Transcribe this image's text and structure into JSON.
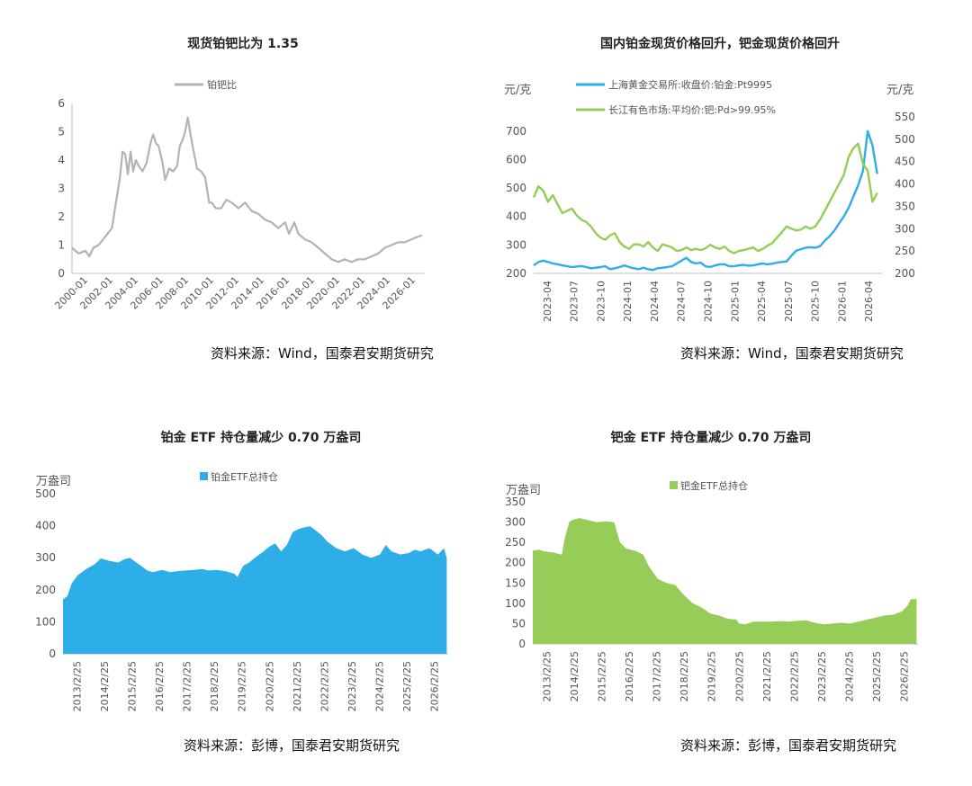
{
  "panels": {
    "p1": {
      "title": "现货铂钯比为 1.35",
      "source": "资料来源：Wind，国泰君安期货研究"
    },
    "p2": {
      "title": "国内铂金现货价格回升，钯金现货价格回升",
      "source": "资料来源：Wind，国泰君安期货研究"
    },
    "p3": {
      "title": "铂金 ETF 持仓量减少 0.70 万盎司",
      "source": "资料来源：彭博，国泰君安期货研究"
    },
    "p4": {
      "title": "钯金 ETF 持仓量减少 0.70 万盎司",
      "source": "资料来源：彭博，国泰君安期货研究"
    }
  },
  "colors": {
    "gray": "#b3b3b3",
    "blue": "#2eaee8",
    "green": "#95cd58"
  },
  "chart_data": [
    {
      "type": "line",
      "title": "现货铂钯比为 1.35",
      "xlabel": "",
      "ylabel": "",
      "ylim": [
        0,
        6
      ],
      "yticks": [
        0,
        1,
        2,
        3,
        4,
        5,
        6
      ],
      "xlim": [
        2000.0,
        2026.5
      ],
      "xtick_labels": [
        "2000-01",
        "2002-01",
        "2004-01",
        "2006-01",
        "2008-01",
        "2010-01",
        "2012-01",
        "2014-01",
        "2016-01",
        "2018-01",
        "2020-01",
        "2022-01",
        "2024-01",
        "2026-01"
      ],
      "legend": "top-center",
      "series": [
        {
          "name": "铂钯比",
          "color": "#b3b3b3",
          "x": [
            2000.0,
            2000.5,
            2001.0,
            2001.3,
            2001.6,
            2002.0,
            2002.5,
            2003.0,
            2003.3,
            2003.6,
            2003.8,
            2004.0,
            2004.2,
            2004.4,
            2004.6,
            2004.8,
            2005.0,
            2005.3,
            2005.6,
            2005.9,
            2006.1,
            2006.3,
            2006.5,
            2006.8,
            2007.0,
            2007.3,
            2007.6,
            2007.9,
            2008.1,
            2008.3,
            2008.5,
            2008.7,
            2008.9,
            2009.1,
            2009.4,
            2009.7,
            2010.0,
            2010.3,
            2010.5,
            2010.8,
            2011.2,
            2011.6,
            2012.0,
            2012.5,
            2013.0,
            2013.5,
            2014.0,
            2014.5,
            2015.0,
            2015.5,
            2016.0,
            2016.3,
            2016.7,
            2017.0,
            2017.5,
            2018.0,
            2018.5,
            2019.0,
            2019.5,
            2020.0,
            2020.5,
            2021.0,
            2021.5,
            2022.0,
            2022.5,
            2023.0,
            2023.5,
            2024.0,
            2024.5,
            2025.0,
            2025.5,
            2026.0,
            2026.3
          ],
          "y": [
            0.9,
            0.7,
            0.8,
            0.6,
            0.9,
            1.0,
            1.3,
            1.6,
            2.5,
            3.4,
            4.3,
            4.2,
            3.5,
            4.3,
            3.6,
            4.0,
            3.8,
            3.6,
            3.9,
            4.6,
            4.9,
            4.6,
            4.5,
            3.9,
            3.3,
            3.7,
            3.6,
            3.8,
            4.5,
            4.7,
            5.0,
            5.5,
            4.9,
            4.4,
            3.7,
            3.6,
            3.4,
            2.5,
            2.5,
            2.3,
            2.3,
            2.6,
            2.5,
            2.3,
            2.5,
            2.2,
            2.1,
            1.9,
            1.8,
            1.6,
            1.8,
            1.4,
            1.8,
            1.4,
            1.2,
            1.1,
            0.9,
            0.7,
            0.5,
            0.4,
            0.5,
            0.4,
            0.5,
            0.5,
            0.6,
            0.7,
            0.9,
            1.0,
            1.1,
            1.1,
            1.2,
            1.3,
            1.35
          ]
        }
      ]
    },
    {
      "type": "line",
      "title": "国内铂金现货价格回升，钯金现货价格回升",
      "ylabel": "元/克",
      "y2label": "元/克",
      "ylim": [
        200,
        750
      ],
      "yticks": [
        200,
        300,
        400,
        500,
        600,
        700
      ],
      "y2lim": [
        200,
        550
      ],
      "y2ticks": [
        200,
        250,
        300,
        350,
        400,
        450,
        500,
        550
      ],
      "xlim": [
        0,
        36.5
      ],
      "xtick_labels": [
        "2023-04",
        "2023-07",
        "2023-10",
        "2024-01",
        "2024-04",
        "2024-07",
        "2024-10",
        "2025-01",
        "2025-04",
        "2025-07",
        "2025-10",
        "2026-01",
        "2026-04"
      ],
      "legend": "top-center",
      "series": [
        {
          "name": "上海黄金交易所:收盘价:铂金:Pt9995",
          "axis": "left",
          "color": "#2eaee8",
          "x": [
            0,
            0.5,
            1,
            1.5,
            2,
            2.5,
            3,
            3.5,
            4,
            4.5,
            5,
            5.5,
            6,
            6.5,
            7,
            7.5,
            8,
            8.5,
            9,
            9.5,
            10,
            10.5,
            11,
            11.5,
            12,
            12.5,
            13,
            13.5,
            14,
            14.5,
            15,
            15.5,
            16,
            16.5,
            17,
            17.5,
            18,
            18.5,
            19,
            19.5,
            20,
            20.5,
            21,
            21.5,
            22,
            22.5,
            23,
            23.5,
            24,
            24.5,
            25,
            25.5,
            26,
            26.5,
            27,
            27.5,
            28,
            28.5,
            29,
            29.5,
            30,
            30.5,
            31,
            31.5,
            32,
            32.5,
            33,
            33.5,
            34,
            34.5,
            35,
            35.5,
            36
          ],
          "y": [
            228,
            240,
            245,
            240,
            235,
            232,
            228,
            225,
            222,
            224,
            226,
            222,
            218,
            220,
            222,
            225,
            215,
            218,
            222,
            228,
            222,
            218,
            215,
            220,
            215,
            212,
            218,
            220,
            222,
            225,
            235,
            245,
            255,
            240,
            235,
            238,
            225,
            222,
            228,
            232,
            232,
            225,
            225,
            228,
            230,
            227,
            228,
            232,
            235,
            232,
            234,
            238,
            240,
            242,
            262,
            280,
            285,
            290,
            292,
            290,
            295,
            315,
            330,
            350,
            375,
            400,
            430,
            470,
            510,
            560,
            700,
            650,
            550
          ]
        },
        {
          "name": "长江有色市场:平均价:钯:Pd>99.95%",
          "axis": "right",
          "color": "#95cd58",
          "x": [
            0,
            0.5,
            1,
            1.5,
            2,
            2.5,
            3,
            3.5,
            4,
            4.5,
            5,
            5.5,
            6,
            6.5,
            7,
            7.5,
            8,
            8.5,
            9,
            9.5,
            10,
            10.5,
            11,
            11.5,
            12,
            12.5,
            13,
            13.5,
            14,
            14.5,
            15,
            15.5,
            16,
            16.5,
            17,
            17.5,
            18,
            18.5,
            19,
            19.5,
            20,
            20.5,
            21,
            21.5,
            22,
            22.5,
            23,
            23.5,
            24,
            24.5,
            25,
            25.5,
            26,
            26.5,
            27,
            27.5,
            28,
            28.5,
            29,
            29.5,
            30,
            30.5,
            31,
            31.5,
            32,
            32.5,
            33,
            33.5,
            34,
            34.5,
            35,
            35.5,
            36
          ],
          "y": [
            370,
            395,
            385,
            360,
            375,
            355,
            335,
            340,
            345,
            330,
            320,
            315,
            305,
            290,
            280,
            275,
            285,
            290,
            270,
            260,
            255,
            265,
            265,
            260,
            270,
            258,
            250,
            265,
            262,
            258,
            250,
            252,
            258,
            252,
            255,
            252,
            256,
            264,
            258,
            255,
            260,
            250,
            245,
            250,
            252,
            255,
            258,
            250,
            255,
            262,
            268,
            280,
            292,
            305,
            300,
            296,
            298,
            305,
            300,
            305,
            320,
            340,
            360,
            380,
            400,
            420,
            460,
            480,
            490,
            445,
            430,
            360,
            380
          ]
        }
      ]
    },
    {
      "type": "area",
      "title": "铂金 ETF 持仓量减少 0.70 万盎司",
      "ylabel": "万盎司",
      "ylim": [
        0,
        500
      ],
      "yticks": [
        0,
        100,
        200,
        300,
        400,
        500
      ],
      "xlim": [
        2013.0,
        2026.25
      ],
      "xtick_labels": [
        "2013/2/25",
        "2014/2/25",
        "2015/2/25",
        "2016/2/25",
        "2017/2/25",
        "2018/2/25",
        "2019/2/25",
        "2020/2/25",
        "2021/2/25",
        "2022/2/25",
        "2023/2/25",
        "2024/2/25",
        "2025/2/25",
        "2026/2/25"
      ],
      "legend": "top-center",
      "series": [
        {
          "name": "铂金ETF总持仓",
          "color": "#2eaee8",
          "x": [
            2013.0,
            2013.15,
            2013.3,
            2013.5,
            2013.8,
            2014.1,
            2014.3,
            2014.6,
            2014.9,
            2015.1,
            2015.3,
            2015.6,
            2015.9,
            2016.1,
            2016.4,
            2016.7,
            2016.9,
            2017.2,
            2017.5,
            2017.8,
            2018.0,
            2018.3,
            2018.6,
            2018.9,
            2019.0,
            2019.2,
            2019.4,
            2019.6,
            2019.9,
            2020.1,
            2020.3,
            2020.5,
            2020.7,
            2020.9,
            2021.1,
            2021.3,
            2021.5,
            2021.7,
            2021.9,
            2022.1,
            2022.4,
            2022.7,
            2023.0,
            2023.3,
            2023.6,
            2023.9,
            2024.1,
            2024.3,
            2024.6,
            2024.9,
            2025.1,
            2025.3,
            2025.6,
            2025.9,
            2026.1,
            2026.2
          ],
          "y": [
            170,
            180,
            220,
            245,
            265,
            280,
            298,
            290,
            285,
            295,
            300,
            280,
            260,
            255,
            262,
            255,
            258,
            260,
            262,
            265,
            260,
            262,
            258,
            250,
            240,
            275,
            285,
            300,
            320,
            335,
            345,
            320,
            340,
            380,
            390,
            395,
            398,
            385,
            370,
            350,
            330,
            320,
            330,
            310,
            300,
            310,
            340,
            320,
            310,
            315,
            325,
            320,
            330,
            310,
            330,
            300
          ]
        }
      ]
    },
    {
      "type": "area",
      "title": "钯金 ETF 持仓量减少 0.70 万盎司",
      "ylabel": "万盎司",
      "ylim": [
        0,
        350
      ],
      "yticks": [
        0,
        50,
        100,
        150,
        200,
        250,
        300,
        350
      ],
      "xlim": [
        2013.0,
        2026.25
      ],
      "xtick_labels": [
        "2013/2/25",
        "2014/2/25",
        "2015/2/25",
        "2016/2/25",
        "2017/2/25",
        "2018/2/25",
        "2019/2/25",
        "2020/2/25",
        "2021/2/25",
        "2022/2/25",
        "2023/2/25",
        "2024/2/25",
        "2025/2/25",
        "2026/2/25"
      ],
      "legend": "top-center",
      "series": [
        {
          "name": "钯金ETF总持仓",
          "color": "#95cd58",
          "x": [
            2013.0,
            2013.2,
            2013.4,
            2013.7,
            2014.0,
            2014.1,
            2014.25,
            2014.35,
            2014.6,
            2014.9,
            2015.2,
            2015.5,
            2015.8,
            2016.0,
            2016.2,
            2016.5,
            2016.8,
            2017.0,
            2017.3,
            2017.6,
            2017.9,
            2018.2,
            2018.5,
            2018.8,
            2019.1,
            2019.4,
            2019.7,
            2020.0,
            2020.1,
            2020.3,
            2020.6,
            2020.9,
            2021.2,
            2021.5,
            2021.8,
            2022.1,
            2022.4,
            2022.7,
            2023.0,
            2023.3,
            2023.6,
            2023.9,
            2024.2,
            2024.5,
            2024.8,
            2025.1,
            2025.4,
            2025.7,
            2025.9,
            2026.0,
            2026.2
          ],
          "y": [
            230,
            232,
            228,
            225,
            220,
            260,
            300,
            305,
            310,
            305,
            300,
            302,
            300,
            250,
            235,
            230,
            220,
            190,
            160,
            150,
            145,
            120,
            100,
            90,
            75,
            70,
            62,
            60,
            50,
            48,
            55,
            55,
            55,
            56,
            55,
            57,
            58,
            52,
            48,
            50,
            52,
            50,
            55,
            60,
            65,
            70,
            72,
            80,
            95,
            110,
            110
          ]
        }
      ]
    }
  ]
}
